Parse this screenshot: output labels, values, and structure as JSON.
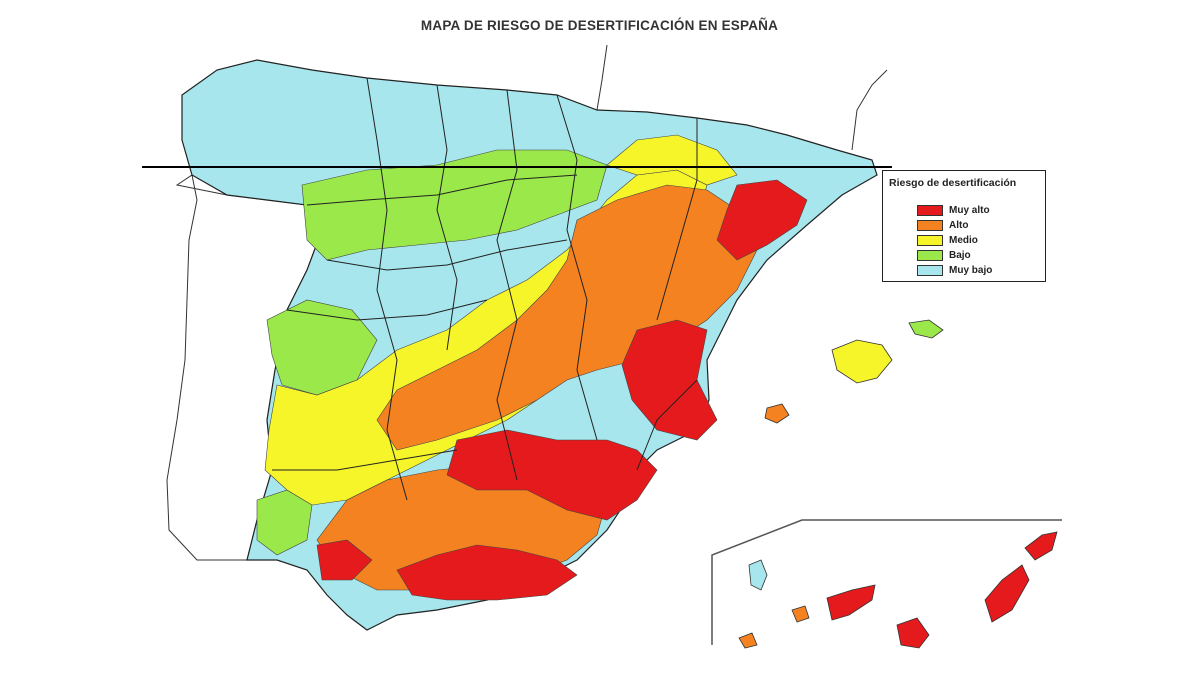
{
  "title": "MAPA DE RIESGO DE DESERTIFICACIÓN EN ESPAÑA",
  "legend": {
    "title": "Riesgo de desertificación",
    "items": [
      {
        "label": "Muy alto",
        "color": "#e41a1c"
      },
      {
        "label": "Alto",
        "color": "#f58220"
      },
      {
        "label": "Medio",
        "color": "#f5f52a"
      },
      {
        "label": "Bajo",
        "color": "#9ae84a"
      },
      {
        "label": "Muy bajo",
        "color": "#a6e6ec"
      }
    ]
  },
  "regions": [
    {
      "name": "north-coast",
      "risk": "Muy bajo"
    },
    {
      "name": "galicia",
      "risk": "Muy bajo"
    },
    {
      "name": "castilla-leon",
      "risk": "Bajo"
    },
    {
      "name": "catalonia-north",
      "risk": "Muy bajo"
    },
    {
      "name": "aragon",
      "risk": "Medio"
    },
    {
      "name": "central-plateau",
      "risk": "Medio"
    },
    {
      "name": "extremadura",
      "risk": "Medio"
    },
    {
      "name": "east-coast",
      "risk": "Muy alto"
    },
    {
      "name": "murcia-andalucia",
      "risk": "Muy alto"
    },
    {
      "name": "baleares",
      "risk": "Medio"
    },
    {
      "name": "canarias",
      "risk": "Muy alto"
    }
  ]
}
